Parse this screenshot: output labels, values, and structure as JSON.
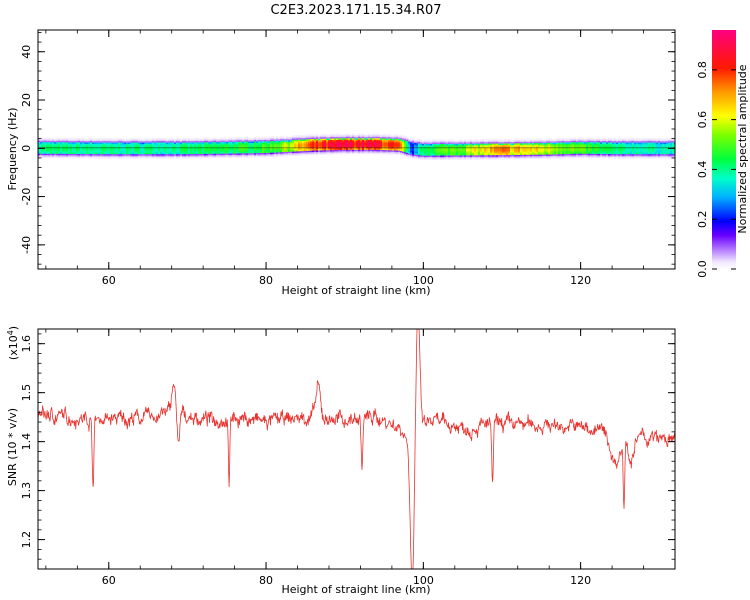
{
  "title": "C2E3.2023.171.15.34.R07",
  "chart_data": [
    {
      "type": "heatmap",
      "xlabel": "Height of straight line (km)",
      "ylabel": "Frequency (Hz)",
      "xlim": [
        51,
        132
      ],
      "ylim": [
        -50,
        49
      ],
      "xticks": [
        60,
        80,
        100,
        120
      ],
      "yticks": [
        -40,
        -20,
        0,
        20,
        40
      ],
      "ytick_labels": [
        "-40",
        "-20",
        "0",
        "20",
        "40"
      ],
      "colorbar": {
        "label": "Normalized spectral amplitude",
        "range": [
          0,
          0.96
        ],
        "ticks": [
          0.0,
          0.2,
          0.4,
          0.6,
          0.8
        ],
        "tick_labels": [
          "0.0",
          "0.2",
          "0.4",
          "0.6",
          "0.8"
        ]
      },
      "band": {
        "x_knots": [
          51,
          60,
          70,
          80,
          83,
          86,
          90,
          94,
          97,
          98.5,
          100,
          105,
          110,
          115,
          120,
          125,
          132
        ],
        "center_hz": [
          0.2,
          0.0,
          0.0,
          0.5,
          1.0,
          1.5,
          1.8,
          1.8,
          1.5,
          0.0,
          -0.6,
          -0.5,
          -0.4,
          -0.2,
          0.2,
          0.0,
          0.0
        ],
        "peak_amplitude": [
          0.42,
          0.4,
          0.42,
          0.48,
          0.6,
          0.78,
          0.88,
          0.86,
          0.74,
          0.2,
          0.45,
          0.55,
          0.72,
          0.62,
          0.5,
          0.4,
          0.38
        ],
        "half_width_hz": 2.5
      }
    },
    {
      "type": "line",
      "xlabel": "Height of straight line (km)",
      "ylabel": "SNR (10 * v/v)",
      "y_multiplier": "(x10",
      "y_multiplier_exp": "4",
      "y_multiplier_close": ")",
      "xlim": [
        51,
        132
      ],
      "ylim": [
        1.14,
        1.63
      ],
      "xticks": [
        60,
        80,
        100,
        120
      ],
      "yticks": [
        1.2,
        1.3,
        1.4,
        1.5,
        1.6
      ],
      "ytick_labels": [
        "1.2",
        "1.3",
        "1.4",
        "1.5",
        "1.6"
      ],
      "series": [
        {
          "color": "#e8332f",
          "baseline": {
            "x": [
              51,
              55,
              60,
              65,
              68,
              72,
              76,
              80,
              85,
              90,
              94,
              97,
              98.3,
              99.5,
              101,
              105,
              110,
              115,
              120,
              124,
              127,
              130,
              132
            ],
            "y": [
              1.455,
              1.45,
              1.445,
              1.45,
              1.46,
              1.445,
              1.45,
              1.44,
              1.45,
              1.445,
              1.45,
              1.43,
              1.4,
              1.43,
              1.44,
              1.43,
              1.435,
              1.435,
              1.43,
              1.42,
              1.41,
              1.405,
              1.4
            ]
          },
          "features": [
            {
              "x": 58.0,
              "dy": -0.13,
              "w": 0.15
            },
            {
              "x": 68.2,
              "dy": 0.06,
              "w": 0.3
            },
            {
              "x": 68.9,
              "dy": -0.07,
              "w": 0.2
            },
            {
              "x": 75.3,
              "dy": -0.15,
              "w": 0.12
            },
            {
              "x": 86.6,
              "dy": 0.06,
              "w": 0.4
            },
            {
              "x": 92.2,
              "dy": -0.1,
              "w": 0.15
            },
            {
              "x": 98.6,
              "dy": -0.29,
              "w": 0.35
            },
            {
              "x": 99.3,
              "dy": 0.23,
              "w": 0.35
            },
            {
              "x": 108.8,
              "dy": -0.12,
              "w": 0.15
            },
            {
              "x": 124.4,
              "dy": -0.06,
              "w": 0.9
            },
            {
              "x": 125.5,
              "dy": -0.14,
              "w": 0.12
            },
            {
              "x": 126.5,
              "dy": -0.05,
              "w": 0.5
            }
          ],
          "noise_amplitude": 0.017
        }
      ]
    }
  ]
}
